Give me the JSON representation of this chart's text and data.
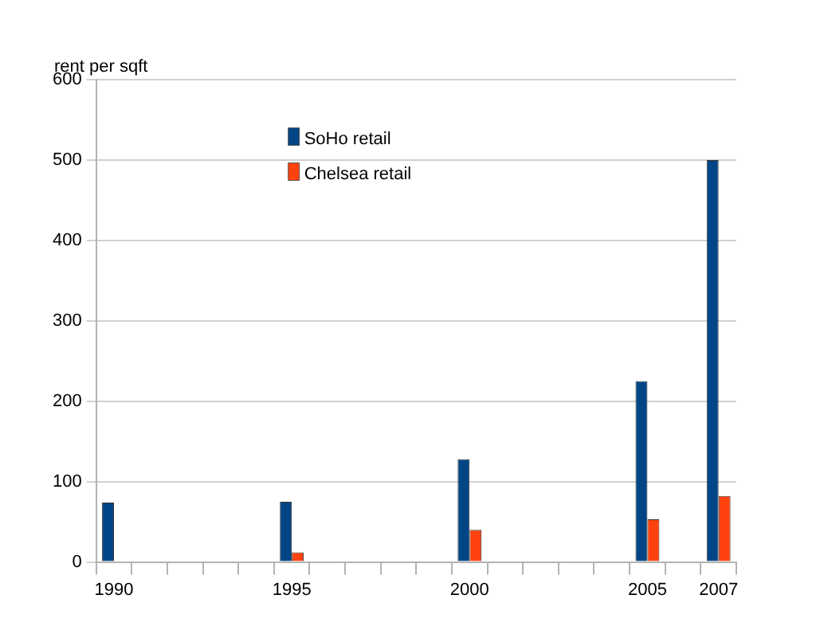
{
  "chart_data": {
    "type": "bar",
    "ylabel": "rent per sqft",
    "categories": [
      "1990",
      null,
      null,
      null,
      null,
      "1995",
      null,
      null,
      null,
      null,
      "2000",
      null,
      null,
      null,
      null,
      "2005",
      null,
      "2007"
    ],
    "series": [
      {
        "name": "SoHo retail",
        "color": "#004586",
        "values": [
          74,
          null,
          null,
          null,
          null,
          75,
          null,
          null,
          null,
          null,
          128,
          null,
          null,
          null,
          null,
          225,
          null,
          500
        ]
      },
      {
        "name": "Chelsea retail",
        "color": "#ff420e",
        "values": [
          null,
          null,
          null,
          null,
          null,
          12,
          null,
          null,
          null,
          null,
          40,
          null,
          null,
          null,
          null,
          53,
          null,
          82
        ]
      }
    ],
    "ylim": [
      0,
      600
    ],
    "yticks": [
      0,
      100,
      200,
      300,
      400,
      500,
      600
    ],
    "grid": "y",
    "legend": "top"
  }
}
